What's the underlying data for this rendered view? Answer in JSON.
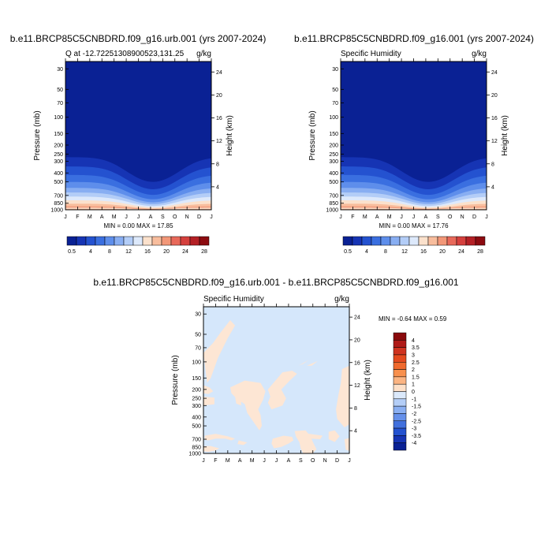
{
  "chart_data": [
    {
      "type": "heatmap",
      "title": "b.e11.BRCP85C5CNBDRD.f09_g16.urb.001 (yrs 2007-2024)",
      "left_title": "Q at -12.72251308900523,131.25",
      "units": "g/kg",
      "xlabel": "",
      "ylabel": "Pressure (mb)",
      "y2label": "Height (km)",
      "x_ticks": [
        "J",
        "F",
        "M",
        "A",
        "M",
        "J",
        "J",
        "A",
        "S",
        "O",
        "N",
        "D",
        "J"
      ],
      "y_ticks": [
        30,
        50,
        70,
        100,
        150,
        200,
        250,
        300,
        400,
        500,
        700,
        850,
        1000
      ],
      "y2_ticks": [
        24,
        20,
        16,
        12,
        8,
        4
      ],
      "y_scale": "log",
      "ylim": [
        1000,
        25
      ],
      "stats": "MIN =   0.00 MAX =  17.85",
      "colorbar_labels": [
        "0.5",
        "4",
        "8",
        "12",
        "16",
        "20",
        "24",
        "28"
      ],
      "colors": [
        "#0a2194",
        "#1634b4",
        "#2452d0",
        "#3a6fe0",
        "#5e8eeb",
        "#88aef2",
        "#b3cdf7",
        "#dde9fb",
        "#fbe1cc",
        "#f8bd9d",
        "#f29778",
        "#e8695a",
        "#d5403d",
        "#b42025",
        "#8c0b10"
      ],
      "levels": [
        0.5,
        2,
        4,
        6,
        8,
        10,
        12,
        14,
        16,
        18,
        20,
        22,
        24,
        26,
        28
      ],
      "surface_peak_approx": 17.85
    },
    {
      "type": "heatmap",
      "title": "b.e11.BRCP85C5CNBDRD.f09_g16.001 (yrs 2007-2024)",
      "left_title": "Specific Humidity",
      "units": "g/kg",
      "xlabel": "",
      "ylabel": "Pressure (mb)",
      "y2label": "Height (km)",
      "x_ticks": [
        "J",
        "F",
        "M",
        "A",
        "M",
        "J",
        "J",
        "A",
        "S",
        "O",
        "N",
        "D",
        "J"
      ],
      "y_ticks": [
        30,
        50,
        70,
        100,
        150,
        200,
        250,
        300,
        400,
        500,
        700,
        850,
        1000
      ],
      "y2_ticks": [
        24,
        20,
        16,
        12,
        8,
        4
      ],
      "y_scale": "log",
      "ylim": [
        1000,
        25
      ],
      "stats": "MIN =   0.00 MAX =  17.76",
      "colorbar_labels": [
        "0.5",
        "4",
        "8",
        "12",
        "16",
        "20",
        "24",
        "28"
      ],
      "colors": [
        "#0a2194",
        "#1634b4",
        "#2452d0",
        "#3a6fe0",
        "#5e8eeb",
        "#88aef2",
        "#b3cdf7",
        "#dde9fb",
        "#fbe1cc",
        "#f8bd9d",
        "#f29778",
        "#e8695a",
        "#d5403d",
        "#b42025",
        "#8c0b10"
      ],
      "levels": [
        0.5,
        2,
        4,
        6,
        8,
        10,
        12,
        14,
        16,
        18,
        20,
        22,
        24,
        26,
        28
      ],
      "surface_peak_approx": 17.76
    },
    {
      "type": "heatmap",
      "title": "b.e11.BRCP85C5CNBDRD.f09_g16.urb.001 - b.e11.BRCP85C5CNBDRD.f09_g16.001",
      "left_title": "Specific Humidity",
      "units": "g/kg",
      "xlabel": "",
      "ylabel": "Pressure (mb)",
      "y2label": "Height (km)",
      "x_ticks": [
        "J",
        "F",
        "M",
        "A",
        "M",
        "J",
        "J",
        "A",
        "S",
        "O",
        "N",
        "D",
        "J"
      ],
      "y_ticks": [
        30,
        50,
        70,
        100,
        150,
        200,
        250,
        300,
        400,
        500,
        700,
        850,
        1000
      ],
      "y2_ticks": [
        24,
        20,
        16,
        12,
        8,
        4
      ],
      "y_scale": "log",
      "ylim": [
        1000,
        25
      ],
      "stats": "MIN =  -0.64 MAX =   0.59",
      "colorbar_labels": [
        "4",
        "3.5",
        "3",
        "2.5",
        "2",
        "1.5",
        "1",
        "0",
        "-1",
        "-1.5",
        "-2",
        "-2.5",
        "-3",
        "-3.5",
        "-4"
      ],
      "colors": [
        "#8a0a0c",
        "#b01a18",
        "#cf3320",
        "#e44a1f",
        "#f06a2e",
        "#f8904d",
        "#fbb482",
        "#fde0c8",
        "#dbe9fb",
        "#b4cef7",
        "#8aaff2",
        "#6590ea",
        "#4170dd",
        "#2452d0",
        "#1634b4",
        "#0a2194"
      ],
      "background_color": "#d5e7fb",
      "positive_patch_color": "#fde6d4"
    }
  ]
}
